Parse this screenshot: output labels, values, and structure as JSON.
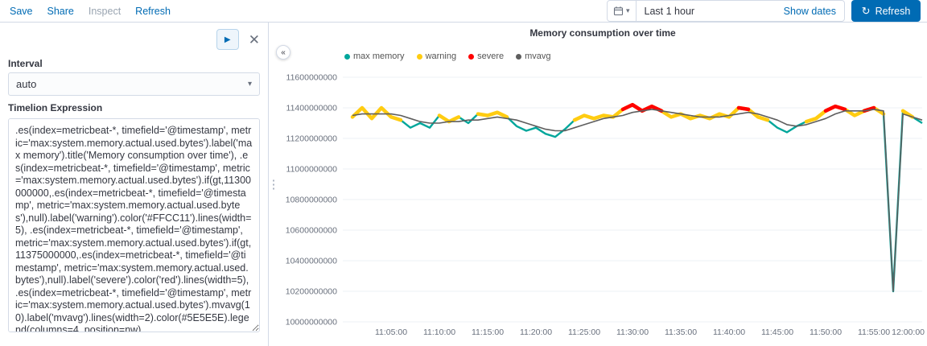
{
  "topbar": {
    "items": [
      {
        "label": "Save",
        "disabled": false
      },
      {
        "label": "Share",
        "disabled": false
      },
      {
        "label": "Inspect",
        "disabled": true
      },
      {
        "label": "Refresh",
        "disabled": false
      }
    ],
    "datepicker": {
      "value": "Last 1 hour",
      "show_dates_label": "Show dates"
    },
    "refresh_button_label": "Refresh"
  },
  "editor": {
    "interval_label": "Interval",
    "interval_value": "auto",
    "expression_label": "Timelion Expression",
    "expression": ".es(index=metricbeat-*, timefield='@timestamp', metric='max:system.memory.actual.used.bytes').label('max memory').title('Memory consumption over time'), .es(index=metricbeat-*, timefield='@timestamp', metric='max:system.memory.actual.used.bytes').if(gt,11300000000,.es(index=metricbeat-*, timefield='@timestamp', metric='max:system.memory.actual.used.bytes'),null).label('warning').color('#FFCC11').lines(width=5), .es(index=metricbeat-*, timefield='@timestamp', metric='max:system.memory.actual.used.bytes').if(gt,11375000000,.es(index=metricbeat-*, timefield='@timestamp', metric='max:system.memory.actual.used.bytes'),null).label('severe').color('red').lines(width=5), .es(index=metricbeat-*, timefield='@timestamp', metric='max:system.memory.actual.used.bytes').mvavg(10).label('mvavg').lines(width=2).color(#5E5E5E).legend(columns=4, position=nw)"
  },
  "chart_data": {
    "type": "line",
    "title": "Memory consumption over time",
    "x_unit": "minutes after 11:00:00",
    "xlim": [
      0,
      60
    ],
    "ylim": [
      10000000000,
      11600000000
    ],
    "y_ticks": [
      11600000000,
      11400000000,
      11200000000,
      11000000000,
      10800000000,
      10600000000,
      10400000000,
      10200000000,
      10000000000
    ],
    "x_ticks": [
      {
        "minute": 5,
        "label": "11:05:00"
      },
      {
        "minute": 10,
        "label": "11:10:00"
      },
      {
        "minute": 15,
        "label": "11:15:00"
      },
      {
        "minute": 20,
        "label": "11:20:00"
      },
      {
        "minute": 25,
        "label": "11:25:00"
      },
      {
        "minute": 30,
        "label": "11:30:00"
      },
      {
        "minute": 35,
        "label": "11:35:00"
      },
      {
        "minute": 40,
        "label": "11:40:00"
      },
      {
        "minute": 45,
        "label": "11:45:00"
      },
      {
        "minute": 50,
        "label": "11:50:00"
      },
      {
        "minute": 55,
        "label": "11:55:00"
      },
      {
        "minute": 60,
        "label": "12:00:00"
      }
    ],
    "warning_threshold": 11300000000,
    "severe_threshold": 11375000000,
    "legend_position": "nw",
    "series": [
      {
        "name": "max memory",
        "color": "#00A69B",
        "width": 2.5,
        "values": [
          11340000000,
          11400000000,
          11330000000,
          11400000000,
          11340000000,
          11320000000,
          11270000000,
          11300000000,
          11270000000,
          11350000000,
          11310000000,
          11340000000,
          11300000000,
          11360000000,
          11350000000,
          11370000000,
          11340000000,
          11280000000,
          11250000000,
          11270000000,
          11230000000,
          11210000000,
          11260000000,
          11320000000,
          11350000000,
          11330000000,
          11350000000,
          11340000000,
          11390000000,
          11420000000,
          11380000000,
          11410000000,
          11380000000,
          11340000000,
          11360000000,
          11330000000,
          11350000000,
          11330000000,
          11360000000,
          11340000000,
          11400000000,
          11390000000,
          11340000000,
          11320000000,
          11270000000,
          11240000000,
          11280000000,
          11310000000,
          11330000000,
          11380000000,
          11410000000,
          11390000000,
          11350000000,
          11380000000,
          11400000000,
          11360000000,
          10200000000,
          11380000000,
          11340000000,
          11300000000
        ]
      },
      {
        "name": "warning",
        "color": "#FFCC11",
        "width": 5,
        "derived_from": "max memory",
        "rule": "value > 11300000000"
      },
      {
        "name": "severe",
        "color": "#FF0000",
        "width": 5,
        "derived_from": "max memory",
        "rule": "value > 11375000000"
      },
      {
        "name": "mvavg",
        "color": "#5E5E5E",
        "width": 2,
        "values": [
          11350000000,
          11360000000,
          11360000000,
          11360000000,
          11360000000,
          11350000000,
          11330000000,
          11310000000,
          11300000000,
          11300000000,
          11310000000,
          11310000000,
          11320000000,
          11320000000,
          11330000000,
          11340000000,
          11330000000,
          11320000000,
          11300000000,
          11280000000,
          11260000000,
          11250000000,
          11250000000,
          11270000000,
          11290000000,
          11310000000,
          11330000000,
          11340000000,
          11350000000,
          11370000000,
          11380000000,
          11390000000,
          11380000000,
          11370000000,
          11360000000,
          11350000000,
          11340000000,
          11340000000,
          11340000000,
          11350000000,
          11360000000,
          11370000000,
          11360000000,
          11340000000,
          11320000000,
          11290000000,
          11280000000,
          11290000000,
          11310000000,
          11330000000,
          11360000000,
          11380000000,
          11380000000,
          11380000000,
          11390000000,
          11380000000,
          10200000000,
          11360000000,
          11340000000,
          11320000000
        ]
      }
    ]
  }
}
